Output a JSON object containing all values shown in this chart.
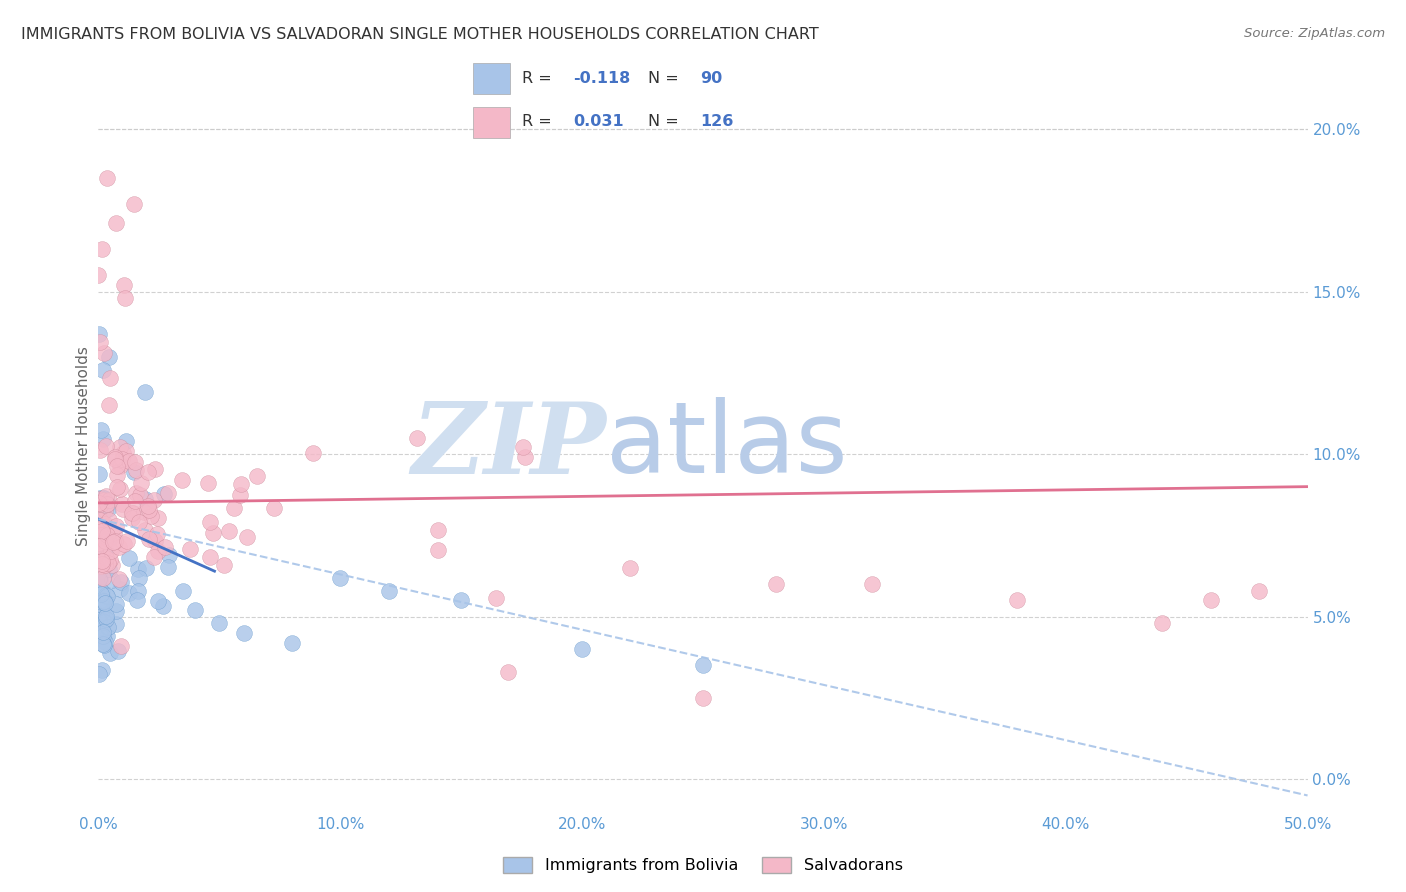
{
  "title": "IMMIGRANTS FROM BOLIVIA VS SALVADORAN SINGLE MOTHER HOUSEHOLDS CORRELATION CHART",
  "source": "Source: ZipAtlas.com",
  "ylabel": "Single Mother Households",
  "xlim": [
    0.0,
    0.5
  ],
  "ylim": [
    -0.01,
    0.215
  ],
  "x_ticks": [
    0.0,
    0.1,
    0.2,
    0.3,
    0.4,
    0.5
  ],
  "x_tick_labels": [
    "0.0%",
    "10.0%",
    "20.0%",
    "30.0%",
    "40.0%",
    "50.0%"
  ],
  "y_ticks": [
    0.0,
    0.05,
    0.1,
    0.15,
    0.2
  ],
  "y_tick_labels": [
    "0.0%",
    "5.0%",
    "10.0%",
    "15.0%",
    "20.0%"
  ],
  "series1_label": "Immigrants from Bolivia",
  "series1_R": "-0.118",
  "series1_N": "90",
  "series1_color": "#a8c4e8",
  "series1_edge_color": "#6699cc",
  "series1_line_color": "#4472c4",
  "series1_dash_color": "#a8c4e8",
  "series2_label": "Salvadorans",
  "series2_R": "0.031",
  "series2_N": "126",
  "series2_color": "#f4b8c8",
  "series2_edge_color": "#cc8899",
  "series2_line_color": "#e07090",
  "watermark_zip": "ZIP",
  "watermark_atlas": "atlas",
  "watermark_color_zip": "#d0dff0",
  "watermark_color_atlas": "#b8cce8",
  "bg_color": "#ffffff",
  "grid_color": "#cccccc",
  "title_color": "#333333",
  "source_color": "#777777",
  "tick_color": "#5b9bd5",
  "ylabel_color": "#666666"
}
